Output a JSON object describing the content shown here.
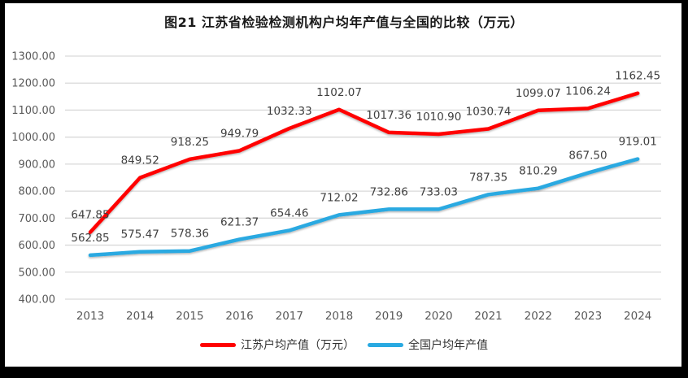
{
  "chart_data": {
    "type": "line",
    "title": "图21  江苏省检验检测机构户均年产值与全国的比较（万元）",
    "categories": [
      "2013",
      "2014",
      "2015",
      "2016",
      "2017",
      "2018",
      "2019",
      "2020",
      "2021",
      "2022",
      "2023",
      "2024"
    ],
    "series": [
      {
        "name": "江苏户均产值（万元）",
        "color": "#FF0000",
        "values": [
          647.85,
          849.52,
          918.25,
          949.79,
          1032.33,
          1102.07,
          1017.36,
          1010.9,
          1030.74,
          1099.07,
          1106.24,
          1162.45
        ]
      },
      {
        "name": "全国户均年产值",
        "color": "#29A9E1",
        "values": [
          562.85,
          575.47,
          578.36,
          621.37,
          654.46,
          712.02,
          732.86,
          733.03,
          787.35,
          810.29,
          867.5,
          919.01
        ]
      }
    ],
    "ylim": [
      400,
      1300
    ],
    "ytick_step": 100,
    "ytick_decimals": 2,
    "data_label_decimals": 2,
    "grid": true,
    "legend_position": "bottom",
    "colors": {
      "grid": "#D9D9D9",
      "tick_label": "#595959",
      "data_label": "#404040",
      "title": "#1A1A1A",
      "frame": "#000000",
      "background": "#FFFFFF"
    }
  }
}
